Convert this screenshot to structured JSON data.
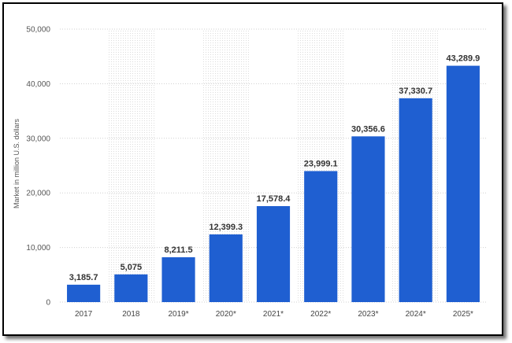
{
  "chart_data": {
    "type": "bar",
    "categories": [
      "2017",
      "2018",
      "2019*",
      "2020*",
      "2021*",
      "2022*",
      "2023*",
      "2024*",
      "2025*"
    ],
    "values": [
      3185.7,
      5075,
      8211.5,
      12399.3,
      17578.4,
      23999.1,
      30356.6,
      37330.7,
      43289.9
    ],
    "value_labels": [
      "3,185.7",
      "5,075",
      "8,211.5",
      "12,399.3",
      "17,578.4",
      "23,999.1",
      "30,356.6",
      "37,330.7",
      "43,289.9"
    ],
    "ylabel": "Market in million U.S. dollars",
    "ylim": [
      0,
      50000
    ],
    "yticks": [
      0,
      10000,
      20000,
      30000,
      40000,
      50000
    ],
    "ytick_labels": [
      "0",
      "10,000",
      "20,000",
      "30,000",
      "40,000",
      "50,000"
    ],
    "grid": true,
    "bar_color": "#1f5fd1"
  }
}
